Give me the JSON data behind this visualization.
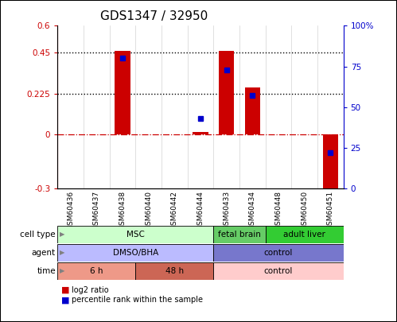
{
  "title": "GDS1347 / 32950",
  "samples": [
    "GSM60436",
    "GSM60437",
    "GSM60438",
    "GSM60440",
    "GSM60442",
    "GSM60444",
    "GSM60433",
    "GSM60434",
    "GSM60448",
    "GSM60450",
    "GSM60451"
  ],
  "log2_ratio": [
    0.0,
    0.0,
    0.46,
    0.0,
    0.0,
    0.01,
    0.46,
    0.26,
    0.0,
    0.0,
    -0.33
  ],
  "pct_rank": [
    null,
    null,
    0.8,
    null,
    null,
    0.43,
    0.73,
    0.57,
    null,
    null,
    0.22
  ],
  "ylim": [
    -0.3,
    0.6
  ],
  "y2lim": [
    0,
    100
  ],
  "yticks": [
    -0.3,
    0,
    0.225,
    0.45,
    0.6
  ],
  "ytick_labels": [
    "-0.3",
    "0",
    "0.225",
    "0.45",
    "0.6"
  ],
  "y2ticks": [
    0,
    25,
    50,
    75,
    100
  ],
  "y2tick_labels": [
    "0",
    "25",
    "50",
    "75",
    "100%"
  ],
  "hline_y": [
    0.225,
    0.45
  ],
  "bar_color": "#cc0000",
  "dot_color": "#0000cc",
  "zero_line_color": "#cc0000",
  "cell_type_groups": [
    {
      "label": "MSC",
      "start": 0,
      "end": 6,
      "color": "#ccffcc"
    },
    {
      "label": "fetal brain",
      "start": 6,
      "end": 8,
      "color": "#66cc66"
    },
    {
      "label": "adult liver",
      "start": 8,
      "end": 11,
      "color": "#33cc33"
    }
  ],
  "agent_groups": [
    {
      "label": "DMSO/BHA",
      "start": 0,
      "end": 6,
      "color": "#bbbbff"
    },
    {
      "label": "control",
      "start": 6,
      "end": 11,
      "color": "#7777cc"
    }
  ],
  "time_groups": [
    {
      "label": "6 h",
      "start": 0,
      "end": 3,
      "color": "#ee9988"
    },
    {
      "label": "48 h",
      "start": 3,
      "end": 6,
      "color": "#cc6655"
    },
    {
      "label": "control",
      "start": 6,
      "end": 11,
      "color": "#ffcccc"
    }
  ],
  "row_labels": [
    "cell type",
    "agent",
    "time"
  ],
  "legend_labels": [
    "log2 ratio",
    "percentile rank within the sample"
  ],
  "legend_colors": [
    "#cc0000",
    "#0000cc"
  ],
  "bar_width": 0.6,
  "dot_size": 5
}
